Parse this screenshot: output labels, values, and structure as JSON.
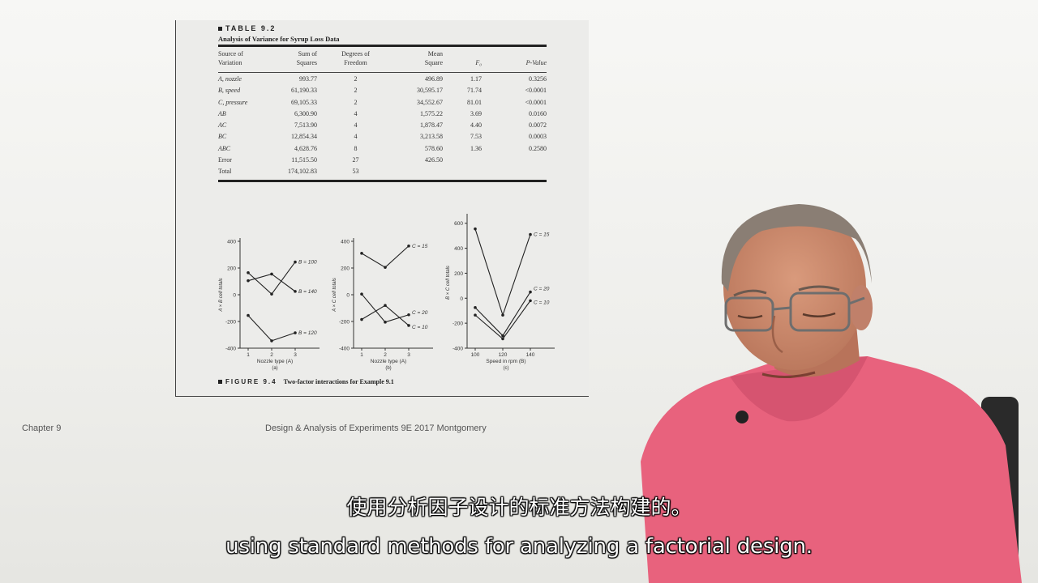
{
  "slide": {
    "table_title": "TABLE 9.2",
    "table_subtitle": "Analysis of Variance for Syrup Loss Data",
    "columns": [
      [
        "Source of",
        "Variation"
      ],
      [
        "Sum of",
        "Squares"
      ],
      [
        "Degrees of",
        "Freedom"
      ],
      [
        "Mean",
        "Square"
      ],
      [
        "",
        "F₀"
      ],
      [
        "",
        "P-Value"
      ]
    ],
    "rows": [
      [
        "A, nozzle",
        "993.77",
        "2",
        "496.89",
        "1.17",
        "0.3256"
      ],
      [
        "B, speed",
        "61,190.33",
        "2",
        "30,595.17",
        "71.74",
        "<0.0001"
      ],
      [
        "C, pressure",
        "69,105.33",
        "2",
        "34,552.67",
        "81.01",
        "<0.0001"
      ],
      [
        "AB",
        "6,300.90",
        "4",
        "1,575.22",
        "3.69",
        "0.0160"
      ],
      [
        "AC",
        "7,513.90",
        "4",
        "1,878.47",
        "4.40",
        "0.0072"
      ],
      [
        "BC",
        "12,854.34",
        "4",
        "3,213.58",
        "7.53",
        "0.0003"
      ],
      [
        "ABC",
        "4,628.76",
        "8",
        "578.60",
        "1.36",
        "0.2580"
      ],
      [
        "Error",
        "11,515.50",
        "27",
        "426.50",
        "",
        ""
      ],
      [
        "Total",
        "174,102.83",
        "53",
        "",
        "",
        ""
      ]
    ],
    "figure_number": "FIGURE 9.4",
    "figure_caption": "Two-factor interactions for Example 9.1",
    "footer_left": "Chapter 9",
    "footer_center": "Design & Analysis of Experiments 9E 2017 Montgomery"
  },
  "chart_data": [
    {
      "type": "line",
      "panel": "(a)",
      "xlabel": "Nozzle type (A)",
      "ylabel": "A × B cell totals",
      "x": [
        "1",
        "2",
        "3"
      ],
      "yticks": [
        400,
        200,
        0,
        -200,
        -400
      ],
      "ylim": [
        -400,
        400
      ],
      "series": [
        {
          "name": "B = 140",
          "values": [
            105,
            155,
            25
          ]
        },
        {
          "name": "B = 100",
          "values": [
            165,
            5,
            245
          ]
        },
        {
          "name": "B = 120",
          "values": [
            -155,
            -345,
            -285
          ]
        }
      ]
    },
    {
      "type": "line",
      "panel": "(b)",
      "xlabel": "Nozzle type (A)",
      "ylabel": "A × C cell totals",
      "x": [
        "1",
        "2",
        "3"
      ],
      "yticks": [
        400,
        200,
        0,
        -200,
        -400
      ],
      "ylim": [
        -400,
        400
      ],
      "series": [
        {
          "name": "C = 15",
          "values": [
            310,
            205,
            365
          ]
        },
        {
          "name": "C = 20",
          "values": [
            5,
            -205,
            -150
          ]
        },
        {
          "name": "C = 10",
          "values": [
            -185,
            -80,
            -230
          ]
        }
      ]
    },
    {
      "type": "line",
      "panel": "(c)",
      "xlabel": "Speed in rpm (B)",
      "ylabel": "B × C cell totals",
      "x": [
        "100",
        "120",
        "140"
      ],
      "yticks": [
        600,
        400,
        200,
        0,
        -200,
        -400
      ],
      "ylim": [
        -400,
        650
      ],
      "series": [
        {
          "name": "C = 15",
          "values": [
            555,
            -135,
            510
          ]
        },
        {
          "name": "C = 20",
          "values": [
            -75,
            -300,
            50
          ]
        },
        {
          "name": "C = 10",
          "values": [
            -135,
            -325,
            -20
          ]
        }
      ]
    }
  ],
  "subtitles": {
    "zh": "使用分析因子设计的标准方法构建的。",
    "en": "using standard methods for analyzing a factorial design."
  },
  "colors": {
    "shirt": "#e8627d",
    "skin": "#c98a6e",
    "hair": "#8a7e74",
    "slide_bg": "#ececea"
  }
}
